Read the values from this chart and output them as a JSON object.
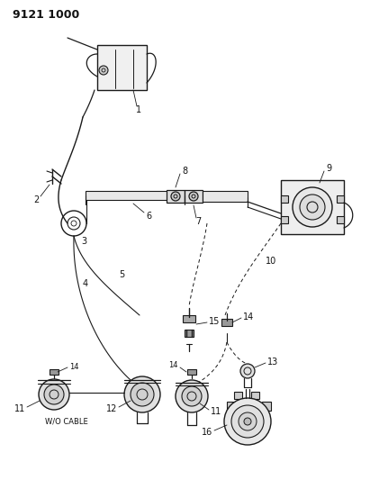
{
  "title": "9121 1000",
  "subtitle": "W/O CABLE",
  "bg_color": "#ffffff",
  "line_color": "#1a1a1a",
  "title_fontsize": 9,
  "label_fontsize": 6.5
}
